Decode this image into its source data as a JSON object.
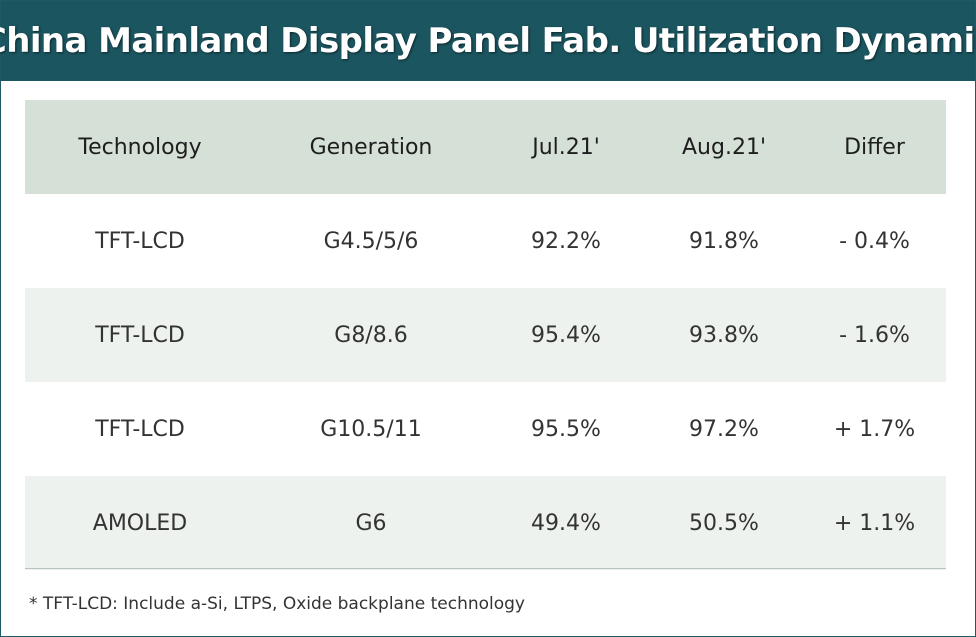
{
  "title": "China Mainland Display Panel Fab. Utilization Dynamic",
  "table": {
    "headers": [
      "Technology",
      "Generation",
      "Jul.21'",
      "Aug.21'",
      "Differ"
    ],
    "rows": [
      [
        "TFT-LCD",
        "G4.5/5/6",
        "92.2%",
        "91.8%",
        "- 0.4%"
      ],
      [
        "TFT-LCD",
        "G8/8.6",
        "95.4%",
        "93.8%",
        "- 1.6%"
      ],
      [
        "TFT-LCD",
        "G10.5/11",
        "95.5%",
        "97.2%",
        "+ 1.7%"
      ],
      [
        "AMOLED",
        "G6",
        "49.4%",
        "50.5%",
        "+ 1.1%"
      ]
    ]
  },
  "footnote": "* TFT-LCD: Include a-Si, LTPS, Oxide backplane technology",
  "colors": {
    "title_bar": "#1b5560",
    "header_row": "#d5e0d6",
    "shaded_row": "#edf2ee"
  }
}
